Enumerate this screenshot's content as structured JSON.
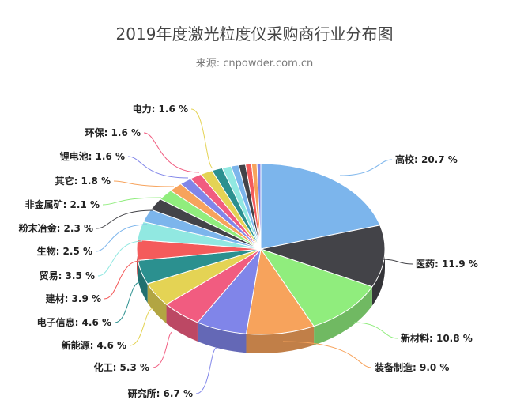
{
  "chart_data": {
    "type": "pie",
    "title": "2019年度激光粒度仪采购商行业分布图",
    "subtitle": "来源: cnpowder.com.cn",
    "unit": "%",
    "slices": [
      {
        "label": "高校",
        "value": 20.7,
        "display": "高校: 20.7 %",
        "color": "#7cb5ec"
      },
      {
        "label": "医药",
        "value": 11.9,
        "display": "医药: 11.9 %",
        "color": "#434348"
      },
      {
        "label": "新材料",
        "value": 10.8,
        "display": "新材料: 10.8 %",
        "color": "#90ed7d"
      },
      {
        "label": "装备制造",
        "value": 9.0,
        "display": "装备制造: 9.0 %",
        "color": "#f7a35c"
      },
      {
        "label": "研究所",
        "value": 6.7,
        "display": "研究所: 6.7 %",
        "color": "#8085e9"
      },
      {
        "label": "化工",
        "value": 5.3,
        "display": "化工: 5.3 %",
        "color": "#f15c80"
      },
      {
        "label": "新能源",
        "value": 4.6,
        "display": "新能源: 4.6 %",
        "color": "#e4d354"
      },
      {
        "label": "电子信息",
        "value": 4.6,
        "display": "电子信息: 4.6 %",
        "color": "#2b908f"
      },
      {
        "label": "建材",
        "value": 3.9,
        "display": "建材: 3.9 %",
        "color": "#f45b5b"
      },
      {
        "label": "贸易",
        "value": 3.5,
        "display": "贸易: 3.5 %",
        "color": "#91e8e1"
      },
      {
        "label": "生物",
        "value": 2.5,
        "display": "生物: 2.5 %",
        "color": "#7cb5ec"
      },
      {
        "label": "粉末冶金",
        "value": 2.3,
        "display": "粉末冶金: 2.3 %",
        "color": "#434348"
      },
      {
        "label": "非金属矿",
        "value": 2.1,
        "display": "非金属矿: 2.1 %",
        "color": "#90ed7d"
      },
      {
        "label": "其它",
        "value": 1.8,
        "display": "其它: 1.8 %",
        "color": "#f7a35c"
      },
      {
        "label": "锂电池",
        "value": 1.6,
        "display": "锂电池: 1.6 %",
        "color": "#8085e9"
      },
      {
        "label": "环保",
        "value": 1.6,
        "display": "环保: 1.6 %",
        "color": "#f15c80"
      },
      {
        "label": "电力",
        "value": 1.6,
        "display": "电力: 1.6 %",
        "color": "#e4d354"
      },
      {
        "label": "",
        "value": 1.4,
        "display": "",
        "color": "#2b908f"
      },
      {
        "label": "",
        "value": 1.2,
        "display": "",
        "color": "#91e8e1"
      },
      {
        "label": "",
        "value": 1.0,
        "display": "",
        "color": "#7cb5ec"
      },
      {
        "label": "",
        "value": 0.9,
        "display": "",
        "color": "#434348"
      },
      {
        "label": "",
        "value": 0.8,
        "display": "",
        "color": "#f45b5b"
      },
      {
        "label": "",
        "value": 0.7,
        "display": "",
        "color": "#f7a35c"
      },
      {
        "label": "",
        "value": 0.5,
        "display": "",
        "color": "#8085e9"
      }
    ]
  }
}
